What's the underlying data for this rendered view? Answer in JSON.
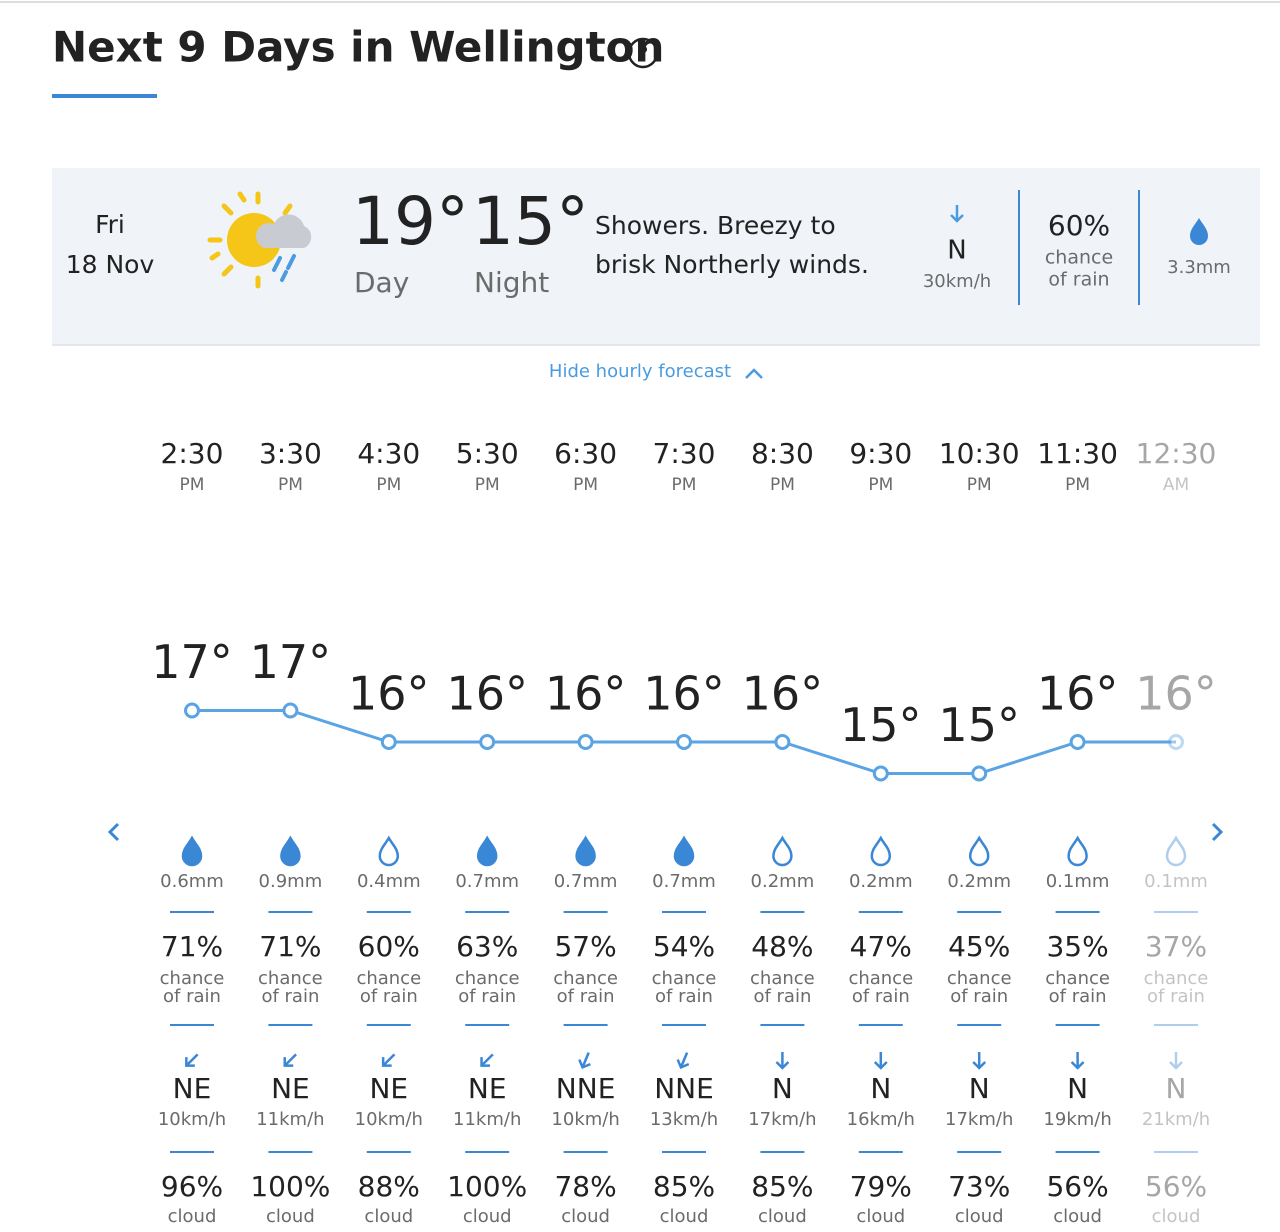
{
  "header": {
    "title": "Next 9 Days in Wellington"
  },
  "day": {
    "weekday": "Fri",
    "date": "18 Nov",
    "high": "19°",
    "high_label": "Day",
    "low": "15°",
    "low_label": "Night",
    "description": [
      "Showers. Breezy to",
      "brisk Northerly winds."
    ],
    "wind_dir": "N",
    "wind_speed": "30km/h",
    "rain_chance": "60%",
    "rain_chance_label": [
      "chance",
      "of rain"
    ],
    "rain_amount": "3.3mm"
  },
  "toggle": "Hide hourly forecast",
  "hours": [
    {
      "time": "2:30",
      "period": "PM",
      "temp": 17,
      "temp_label": "17°",
      "rain": "0.6mm",
      "chance": "71%",
      "chance_label": [
        "chance",
        "of rain"
      ],
      "wind_dir": "NE",
      "wind_speed": "10km/h",
      "cloud": "96%",
      "cloud_label": "cloud"
    },
    {
      "time": "3:30",
      "period": "PM",
      "temp": 17,
      "temp_label": "17°",
      "rain": "0.9mm",
      "chance": "71%",
      "chance_label": [
        "chance",
        "of rain"
      ],
      "wind_dir": "NE",
      "wind_speed": "11km/h",
      "cloud": "100%",
      "cloud_label": "cloud"
    },
    {
      "time": "4:30",
      "period": "PM",
      "temp": 16,
      "temp_label": "16°",
      "rain": "0.4mm",
      "chance": "60%",
      "chance_label": [
        "chance",
        "of rain"
      ],
      "wind_dir": "NE",
      "wind_speed": "10km/h",
      "cloud": "88%",
      "cloud_label": "cloud"
    },
    {
      "time": "5:30",
      "period": "PM",
      "temp": 16,
      "temp_label": "16°",
      "rain": "0.7mm",
      "chance": "63%",
      "chance_label": [
        "chance",
        "of rain"
      ],
      "wind_dir": "NE",
      "wind_speed": "11km/h",
      "cloud": "100%",
      "cloud_label": "cloud"
    },
    {
      "time": "6:30",
      "period": "PM",
      "temp": 16,
      "temp_label": "16°",
      "rain": "0.7mm",
      "chance": "57%",
      "chance_label": [
        "chance",
        "of rain"
      ],
      "wind_dir": "NNE",
      "wind_speed": "10km/h",
      "cloud": "78%",
      "cloud_label": "cloud"
    },
    {
      "time": "7:30",
      "period": "PM",
      "temp": 16,
      "temp_label": "16°",
      "rain": "0.7mm",
      "chance": "54%",
      "chance_label": [
        "chance",
        "of rain"
      ],
      "wind_dir": "NNE",
      "wind_speed": "13km/h",
      "cloud": "85%",
      "cloud_label": "cloud"
    },
    {
      "time": "8:30",
      "period": "PM",
      "temp": 16,
      "temp_label": "16°",
      "rain": "0.2mm",
      "chance": "48%",
      "chance_label": [
        "chance",
        "of rain"
      ],
      "wind_dir": "N",
      "wind_speed": "17km/h",
      "cloud": "85%",
      "cloud_label": "cloud"
    },
    {
      "time": "9:30",
      "period": "PM",
      "temp": 15,
      "temp_label": "15°",
      "rain": "0.2mm",
      "chance": "47%",
      "chance_label": [
        "chance",
        "of rain"
      ],
      "wind_dir": "N",
      "wind_speed": "16km/h",
      "cloud": "79%",
      "cloud_label": "cloud"
    },
    {
      "time": "10:30",
      "period": "PM",
      "temp": 15,
      "temp_label": "15°",
      "rain": "0.2mm",
      "chance": "45%",
      "chance_label": [
        "chance",
        "of rain"
      ],
      "wind_dir": "N",
      "wind_speed": "17km/h",
      "cloud": "73%",
      "cloud_label": "cloud"
    },
    {
      "time": "11:30",
      "period": "PM",
      "temp": 16,
      "temp_label": "16°",
      "rain": "0.1mm",
      "chance": "35%",
      "chance_label": [
        "chance",
        "of rain"
      ],
      "wind_dir": "N",
      "wind_speed": "19km/h",
      "cloud": "56%",
      "cloud_label": "cloud"
    },
    {
      "time": "12:30",
      "period": "AM",
      "temp": 16,
      "temp_label": "16°",
      "rain": "0.1mm",
      "chance": "37%",
      "chance_label": [
        "chance",
        "of rain"
      ],
      "wind_dir": "N",
      "wind_speed": "21km/h",
      "cloud": "56%",
      "cloud_label": "cloud"
    }
  ]
}
